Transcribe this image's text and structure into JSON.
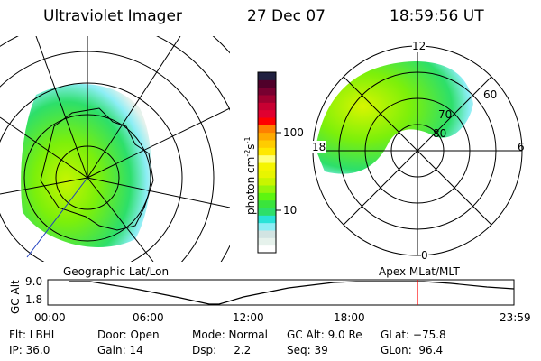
{
  "header": {
    "instrument": "Ultraviolet Imager",
    "date": "27 Dec 07",
    "time": "18:59:56 UT"
  },
  "colorbar": {
    "unit_label": "photon cm",
    "exp1": "-2",
    "mid": "s",
    "exp2": "-1",
    "ticks": [
      "100",
      "10"
    ],
    "scale": "log",
    "colors": [
      "#ffffff",
      "#e6f2ec",
      "#d2e4e2",
      "#8ceef5",
      "#29e3d8",
      "#2ddf6a",
      "#3ae43c",
      "#5df510",
      "#95f50a",
      "#c8f500",
      "#e8f500",
      "#f5f500",
      "#ffff7a",
      "#ffe800",
      "#ffcc00",
      "#ffaa00",
      "#ff8000",
      "#ff0000",
      "#e00030",
      "#c80032",
      "#a00030",
      "#780030",
      "#50002a",
      "#202040"
    ]
  },
  "polar_plot": {
    "mlt_labels": [
      "12",
      "18",
      "6",
      "0"
    ],
    "mlat_labels": [
      "80",
      "70",
      "60"
    ]
  },
  "timeline": {
    "left_label": "Geographic Lat/Lon",
    "right_label": "Apex MLat/MLT",
    "y_axis_label": "GC Alt",
    "y_ticks": [
      "9.0",
      "1.8"
    ],
    "x_ticks": [
      "00:00",
      "06:00",
      "12:00",
      "18:00",
      "23:59"
    ],
    "current_marker_color": "#ff0000"
  },
  "info": [
    [
      "Flt: LBHL",
      "IP: 36.0"
    ],
    [
      "Door: Open",
      "Gain: 14"
    ],
    [
      "Mode: Normal",
      "Dsp:     2.2"
    ],
    [
      "GC Alt: 9.0 Re",
      "Seq: 39"
    ],
    [
      "GLat: −75.8",
      "GLon:  96.4"
    ]
  ]
}
